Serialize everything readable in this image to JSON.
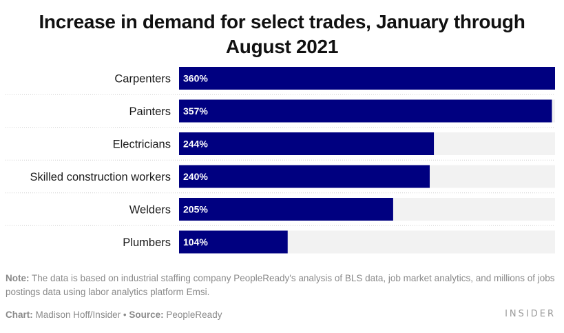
{
  "chart_data": {
    "type": "bar",
    "orientation": "horizontal",
    "title": "Increase in demand for select trades, January through August 2021",
    "categories": [
      "Carpenters",
      "Painters",
      "Electricians",
      "Skilled construction workers",
      "Welders",
      "Plumbers"
    ],
    "values": [
      360,
      357,
      244,
      240,
      205,
      104
    ],
    "value_labels": [
      "360%",
      "357%",
      "244%",
      "240%",
      "205%",
      "104%"
    ],
    "xlim": [
      0,
      360
    ],
    "bar_color": "#000080",
    "track_color": "#f2f2f2",
    "grid": false,
    "legend": "none"
  },
  "footer": {
    "note_label": "Note:",
    "note_text": "The data is based on industrial staffing company PeopleReady's analysis of BLS data, job market analytics, and millions of jobs postings data using labor analytics platform Emsi.",
    "chart_label": "Chart:",
    "chart_text": "Madison Hoff/Insider",
    "separator": "•",
    "source_label": "Source:",
    "source_text": "PeopleReady",
    "brand": "INSIDER"
  }
}
